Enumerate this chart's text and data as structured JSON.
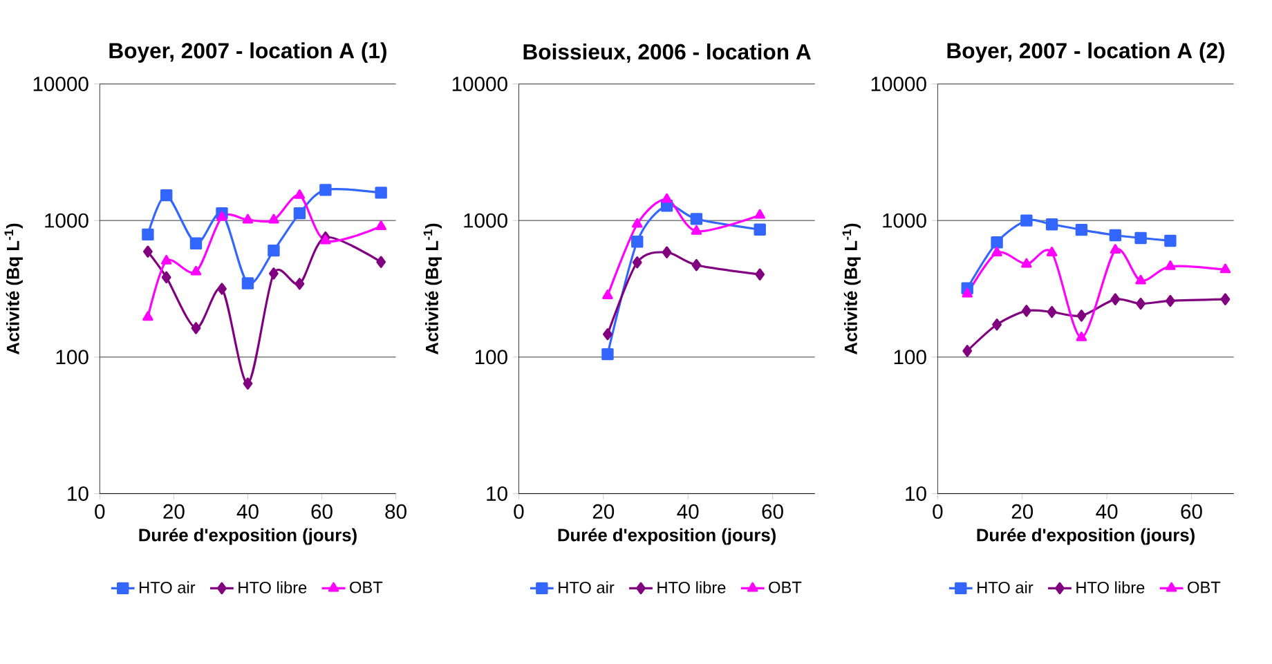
{
  "chart_data": [
    {
      "type": "line",
      "title": "Boyer, 2007 - location A (1)",
      "xlabel": "Durée d'exposition (jours)",
      "ylabel": "Activité (Bq L$^{-1}$)",
      "log": "y",
      "grid": "y",
      "legend": "bottom",
      "xlim": [
        0,
        80
      ],
      "xticks": [
        0,
        20,
        40,
        60,
        80
      ],
      "ylim": [
        10,
        10000
      ],
      "yticks": [
        10,
        100,
        1000,
        10000
      ],
      "x": [
        13,
        18,
        26,
        33,
        40,
        47,
        54,
        61,
        76
      ],
      "series": [
        {
          "name": "HTO air",
          "color": "#3366ff",
          "marker": "square",
          "values": [
            790,
            1530,
            680,
            1130,
            347,
            603,
            1130,
            1675,
            1600
          ]
        },
        {
          "name": "HTO libre",
          "color": "#800080",
          "marker": "diamond",
          "values": [
            592,
            384,
            163,
            316,
            64,
            409,
            344,
            752,
            497
          ]
        },
        {
          "name": "OBT",
          "color": "#ff00ff",
          "marker": "triangle",
          "values": [
            196,
            506,
            421,
            1057,
            1010,
            1010,
            1530,
            711,
            904
          ]
        }
      ]
    },
    {
      "type": "line",
      "title": "Boissieux, 2006 - location A",
      "xlabel": "Durée d'exposition (jours)",
      "ylabel": "Activité (Bq L$^{-1}$)",
      "log": "y",
      "grid": "y",
      "legend": "bottom",
      "xlim": [
        0,
        70
      ],
      "xticks": [
        0,
        20,
        40,
        60
      ],
      "ylim": [
        10,
        10000
      ],
      "yticks": [
        10,
        100,
        1000,
        10000
      ],
      "x": [
        21,
        28,
        35,
        42,
        57
      ],
      "series": [
        {
          "name": "HTO air",
          "color": "#3366ff",
          "marker": "square",
          "values": [
            105,
            700,
            1284,
            1027,
            859
          ]
        },
        {
          "name": "HTO libre",
          "color": "#800080",
          "marker": "diamond",
          "values": [
            147,
            494,
            585,
            472,
            403
          ]
        },
        {
          "name": "OBT",
          "color": "#ff00ff",
          "marker": "triangle",
          "values": [
            282,
            940,
            1430,
            836,
            1094
          ]
        }
      ]
    },
    {
      "type": "line",
      "title": "Boyer, 2007 - location A (2)",
      "xlabel": "Durée d'exposition (jours)",
      "ylabel": "Activité (Bq L$^{-1}$)",
      "log": "y",
      "grid": "y",
      "legend": "bottom",
      "xlim": [
        0,
        70
      ],
      "xticks": [
        0,
        20,
        40,
        60
      ],
      "ylim": [
        10,
        10000
      ],
      "yticks": [
        10,
        100,
        1000,
        10000
      ],
      "series": [
        {
          "name": "HTO air",
          "color": "#3366ff",
          "marker": "square",
          "x": [
            7,
            14,
            21,
            27,
            34,
            42,
            48,
            55
          ],
          "values": [
            319,
            692,
            1000,
            937,
            855,
            780,
            745,
            711
          ]
        },
        {
          "name": "HTO libre",
          "color": "#800080",
          "marker": "diamond",
          "x": [
            7,
            14,
            21,
            27,
            34,
            42,
            48,
            55,
            68
          ],
          "values": [
            111,
            173,
            218,
            214,
            201,
            265,
            246,
            258,
            265
          ]
        },
        {
          "name": "OBT",
          "color": "#ff00ff",
          "marker": "triangle",
          "x": [
            7,
            14,
            21,
            27,
            34,
            42,
            48,
            55,
            68
          ],
          "values": [
            290,
            581,
            479,
            581,
            139,
            608,
            362,
            461,
            437
          ]
        }
      ]
    }
  ]
}
